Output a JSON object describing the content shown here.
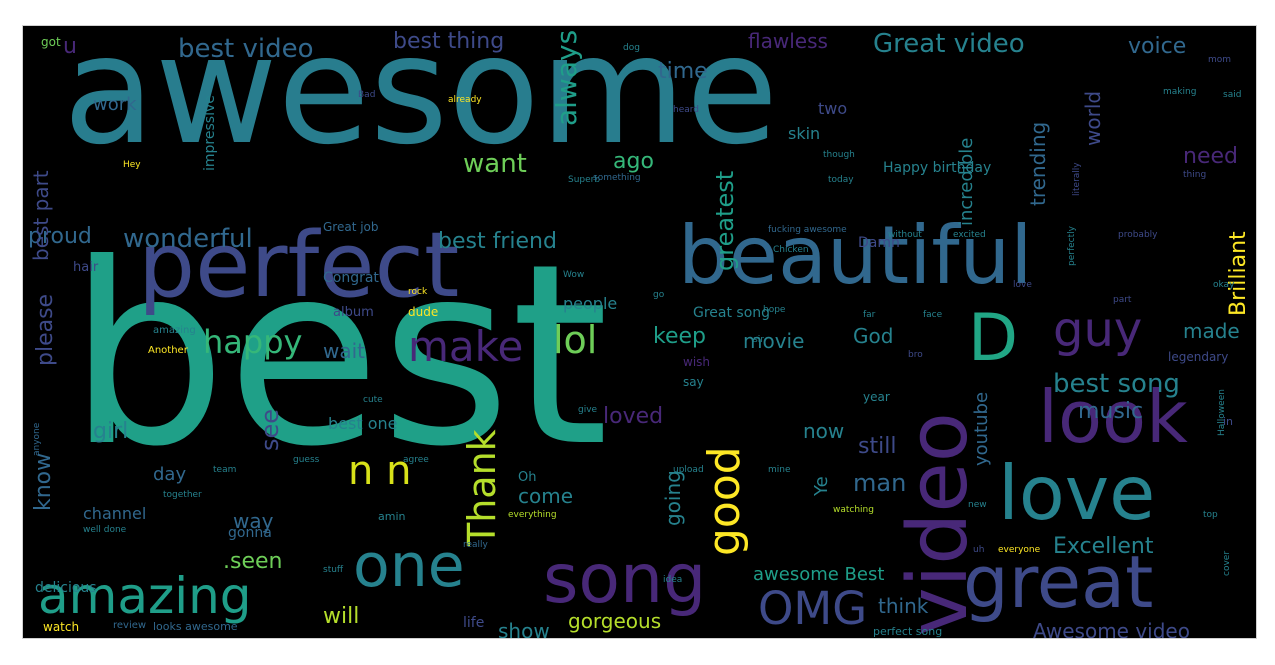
{
  "colors": {
    "background": "#000000",
    "frame": "#ffffff",
    "palette": [
      "#440154",
      "#482878",
      "#3e4a89",
      "#31688e",
      "#26828e",
      "#1f9e89",
      "#35b779",
      "#6ece58",
      "#b5de2b",
      "#fde725"
    ]
  },
  "words": [
    {
      "text": "awesome",
      "color": "#287d8e"
    },
    {
      "text": "best",
      "color": "#1fa088"
    },
    {
      "text": "perfect",
      "color": "#3e4a89"
    },
    {
      "text": "beautiful",
      "color": "#31688e"
    },
    {
      "text": "video",
      "color": "#482878"
    },
    {
      "text": "love",
      "color": "#26828e"
    },
    {
      "text": "look",
      "color": "#482878"
    },
    {
      "text": "great",
      "color": "#3e4a89"
    },
    {
      "text": "song",
      "color": "#482878"
    },
    {
      "text": "one",
      "color": "#26828e"
    },
    {
      "text": "amazing",
      "color": "#1f9e89"
    },
    {
      "text": "OMG",
      "color": "#3e4a89"
    },
    {
      "text": "D",
      "color": "#21a685"
    },
    {
      "text": "guy",
      "color": "#482878"
    },
    {
      "text": "good",
      "color": "#fde725"
    },
    {
      "text": "Thank",
      "color": "#b5de2b"
    },
    {
      "text": "n n",
      "color": "#d8e219"
    },
    {
      "text": "make",
      "color": "#482878"
    },
    {
      "text": "lol",
      "color": "#6ece58"
    },
    {
      "text": "happy",
      "color": "#35b779"
    },
    {
      "text": "wonderful",
      "color": "#31688e"
    },
    {
      "text": "best video",
      "color": "#31688e"
    },
    {
      "text": "best thing",
      "color": "#3e4a89"
    },
    {
      "text": "Great video",
      "color": "#26828e"
    },
    {
      "text": "voice",
      "color": "#31688e"
    },
    {
      "text": "time",
      "color": "#31688e"
    },
    {
      "text": "flawless",
      "color": "#482878"
    },
    {
      "text": "always",
      "color": "#1f9e89"
    },
    {
      "text": "greatest",
      "color": "#1f9e89"
    },
    {
      "text": "want",
      "color": "#6ece58"
    },
    {
      "text": "ago",
      "color": "#35b779"
    },
    {
      "text": "best friend",
      "color": "#26828e"
    },
    {
      "text": "proud",
      "color": "#31688e"
    },
    {
      "text": "please",
      "color": "#3e4a89"
    },
    {
      "text": "best part",
      "color": "#3e4a89"
    },
    {
      "text": "know",
      "color": "#31688e"
    },
    {
      "text": "see",
      "color": "#3e4a89"
    },
    {
      "text": "girl",
      "color": "#26828e"
    },
    {
      "text": "way",
      "color": "#31688e"
    },
    {
      "text": ".seen",
      "color": "#6ece58"
    },
    {
      "text": "will",
      "color": "#b5de2b"
    },
    {
      "text": "gorgeous",
      "color": "#b5de2b"
    },
    {
      "text": "show",
      "color": "#26828e"
    },
    {
      "text": "think",
      "color": "#31688e"
    },
    {
      "text": "awesome Best",
      "color": "#1f9e89"
    },
    {
      "text": "Awesome video",
      "color": "#3e4a89"
    },
    {
      "text": "Excellent",
      "color": "#26828e"
    },
    {
      "text": "best song",
      "color": "#26828e"
    },
    {
      "text": "music",
      "color": "#31688e"
    },
    {
      "text": "made",
      "color": "#26828e"
    },
    {
      "text": "need",
      "color": "#482878"
    },
    {
      "text": "Brilliant",
      "color": "#fde725"
    },
    {
      "text": "world",
      "color": "#3e4a89"
    },
    {
      "text": "trending",
      "color": "#31688e"
    },
    {
      "text": "incredible",
      "color": "#26828e"
    },
    {
      "text": "keep",
      "color": "#1f9e89"
    },
    {
      "text": "movie",
      "color": "#26828e"
    },
    {
      "text": "God",
      "color": "#26828e"
    },
    {
      "text": "wait",
      "color": "#31688e"
    },
    {
      "text": "man",
      "color": "#31688e"
    },
    {
      "text": "still",
      "color": "#3e4a89"
    },
    {
      "text": "now",
      "color": "#26828e"
    },
    {
      "text": "loved",
      "color": "#482878"
    },
    {
      "text": "come",
      "color": "#26828e"
    },
    {
      "text": "going",
      "color": "#26828e"
    },
    {
      "text": "Ye",
      "color": "#26828e"
    },
    {
      "text": "youtube",
      "color": "#31688e"
    },
    {
      "text": "u",
      "color": "#482878"
    },
    {
      "text": "work",
      "color": "#31688e"
    },
    {
      "text": "impressive",
      "color": "#26828e"
    },
    {
      "text": "people",
      "color": "#26828e"
    },
    {
      "text": "Congrat",
      "color": "#31688e"
    },
    {
      "text": "Great song",
      "color": "#26828e"
    },
    {
      "text": "dude",
      "color": "#fde725"
    },
    {
      "text": "album",
      "color": "#3e4a89"
    },
    {
      "text": "day",
      "color": "#31688e"
    },
    {
      "text": "best one",
      "color": "#26828e"
    },
    {
      "text": "channel",
      "color": "#31688e"
    },
    {
      "text": "delicious",
      "color": "#26828e"
    },
    {
      "text": "gonna",
      "color": "#31688e"
    },
    {
      "text": "watch",
      "color": "#fde725"
    },
    {
      "text": "looks awesome",
      "color": "#31688e"
    },
    {
      "text": "life",
      "color": "#3e4a89"
    },
    {
      "text": "two",
      "color": "#3e4a89"
    },
    {
      "text": "skin",
      "color": "#26828e"
    },
    {
      "text": "Happy birthday",
      "color": "#26828e"
    },
    {
      "text": "Damn",
      "color": "#3e4a89"
    },
    {
      "text": "Great job",
      "color": "#31688e"
    },
    {
      "text": "hair",
      "color": "#3e4a89"
    },
    {
      "text": "say",
      "color": "#26828e"
    },
    {
      "text": "year",
      "color": "#26828e"
    },
    {
      "text": "wish",
      "color": "#482878"
    },
    {
      "text": "amazing",
      "color": "#26828e"
    },
    {
      "text": "Another",
      "color": "#fde725"
    },
    {
      "text": "legendary",
      "color": "#3e4a89"
    },
    {
      "text": "perfect song",
      "color": "#26828e"
    },
    {
      "text": "Oh",
      "color": "#26828e"
    },
    {
      "text": "everything",
      "color": "#b5de2b"
    },
    {
      "text": "got",
      "color": "#6ece58"
    },
    {
      "text": "dog",
      "color": "#26828e"
    },
    {
      "text": "already",
      "color": "#fde725"
    },
    {
      "text": "heard",
      "color": "#3e4a89"
    },
    {
      "text": "making",
      "color": "#26828e"
    },
    {
      "text": "Superb",
      "color": "#26828e"
    },
    {
      "text": "today",
      "color": "#26828e"
    },
    {
      "text": "fucking awesome",
      "color": "#31688e"
    },
    {
      "text": "perfectly",
      "color": "#26828e"
    },
    {
      "text": "probably",
      "color": "#3e4a89"
    },
    {
      "text": "really",
      "color": "#31688e"
    },
    {
      "text": "idea",
      "color": "#26828e"
    },
    {
      "text": "watching",
      "color": "#b5de2b"
    },
    {
      "text": "everyone",
      "color": "#fde725"
    },
    {
      "text": "stuff",
      "color": "#26828e"
    },
    {
      "text": "well done",
      "color": "#26828e"
    },
    {
      "text": "together",
      "color": "#26828e"
    },
    {
      "text": "rock",
      "color": "#fde725"
    },
    {
      "text": "thing",
      "color": "#3e4a89"
    },
    {
      "text": "cute",
      "color": "#26828e"
    },
    {
      "text": "give",
      "color": "#26828e"
    },
    {
      "text": "amin",
      "color": "#26828e"
    },
    {
      "text": "review",
      "color": "#31688e"
    },
    {
      "text": "literally",
      "color": "#3e4a89"
    },
    {
      "text": "hope",
      "color": "#26828e"
    },
    {
      "text": "bro",
      "color": "#3e4a89"
    },
    {
      "text": "though",
      "color": "#26828e"
    },
    {
      "text": "something",
      "color": "#31688e"
    },
    {
      "text": "without",
      "color": "#26828e"
    },
    {
      "text": "excited",
      "color": "#26828e"
    },
    {
      "text": "Hey",
      "color": "#fde725"
    },
    {
      "text": "love",
      "color": "#3e4a89"
    },
    {
      "text": "Bad",
      "color": "#3e4a89"
    },
    {
      "text": "new",
      "color": "#26828e"
    },
    {
      "text": "far",
      "color": "#26828e"
    },
    {
      "text": "sir",
      "color": "#26828e"
    },
    {
      "text": "uh",
      "color": "#3e4a89"
    },
    {
      "text": "go",
      "color": "#26828e"
    },
    {
      "text": "Wow",
      "color": "#26828e"
    },
    {
      "text": "part",
      "color": "#3e4a89"
    },
    {
      "text": "okay",
      "color": "#26828e"
    },
    {
      "text": "mom",
      "color": "#3e4a89"
    },
    {
      "text": "face",
      "color": "#26828e"
    },
    {
      "text": "said",
      "color": "#26828e"
    },
    {
      "text": "in",
      "color": "#3e4a89"
    },
    {
      "text": "Halloween",
      "color": "#26828e"
    },
    {
      "text": "anyone",
      "color": "#31688e"
    },
    {
      "text": "cover",
      "color": "#26828e"
    },
    {
      "text": "upload",
      "color": "#26828e"
    },
    {
      "text": "mine",
      "color": "#26828e"
    },
    {
      "text": "Chicken",
      "color": "#26828e"
    },
    {
      "text": "agree",
      "color": "#26828e"
    },
    {
      "text": "team",
      "color": "#26828e"
    },
    {
      "text": "guess",
      "color": "#26828e"
    },
    {
      "text": "top",
      "color": "#26828e"
    }
  ]
}
